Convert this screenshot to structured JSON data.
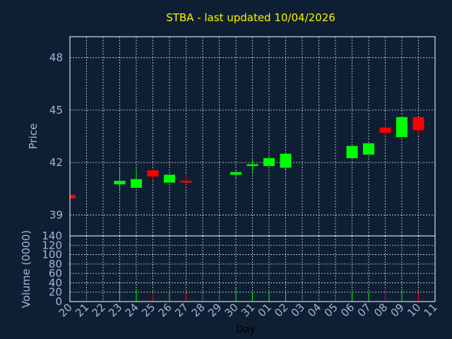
{
  "chart_data": {
    "type": "candlestick",
    "title": "STBA - last updated 10/04/2026",
    "price": {
      "ylabel": "Price",
      "ylim": [
        37.8,
        49.2
      ],
      "yticks": [
        39,
        42,
        45,
        48
      ]
    },
    "volume": {
      "ylabel": "Volume (0000)",
      "ylim": [
        0,
        140
      ],
      "yticks": [
        0,
        20,
        40,
        60,
        80,
        100,
        120,
        140
      ]
    },
    "xlabel": "Day",
    "x_ticks": [
      "20",
      "21",
      "22",
      "23",
      "24",
      "25",
      "26",
      "27",
      "28",
      "29",
      "30",
      "31",
      "01",
      "02",
      "03",
      "04",
      "05",
      "06",
      "07",
      "08",
      "09",
      "10",
      "11"
    ],
    "candles": [
      {
        "day": "20",
        "open": 40.15,
        "close": 39.95,
        "high": 40.15,
        "low": 39.95,
        "volume": 0
      },
      {
        "day": "23",
        "open": 40.75,
        "close": 40.95,
        "high": 41.75,
        "low": 40.35,
        "volume": 40
      },
      {
        "day": "24",
        "open": 40.55,
        "close": 41.05,
        "high": 41.65,
        "low": 40.55,
        "volume": 27
      },
      {
        "day": "25",
        "open": 41.55,
        "close": 41.2,
        "high": 41.65,
        "low": 40.95,
        "volume": 18
      },
      {
        "day": "26",
        "open": 40.85,
        "close": 41.3,
        "high": 41.3,
        "low": 40.85,
        "volume": 17
      },
      {
        "day": "27",
        "open": 40.95,
        "close": 40.85,
        "high": 41.25,
        "low": 40.75,
        "volume": 16
      },
      {
        "day": "30",
        "open": 41.3,
        "close": 41.45,
        "high": 41.5,
        "low": 41.05,
        "volume": 32
      },
      {
        "day": "31",
        "open": 41.8,
        "close": 41.9,
        "high": 42.2,
        "low": 41.35,
        "volume": 20
      },
      {
        "day": "01",
        "open": 41.8,
        "close": 42.25,
        "high": 42.3,
        "low": 41.8,
        "volume": 21
      },
      {
        "day": "02",
        "open": 41.7,
        "close": 42.5,
        "high": 42.5,
        "low": 41.6,
        "volume": 16
      },
      {
        "day": "06",
        "open": 42.25,
        "close": 42.95,
        "high": 42.95,
        "low": 42.25,
        "volume": 20
      },
      {
        "day": "07",
        "open": 42.45,
        "close": 43.1,
        "high": 43.1,
        "low": 42.45,
        "volume": 20
      },
      {
        "day": "08",
        "open": 44.0,
        "close": 43.7,
        "high": 44.4,
        "low": 43.5,
        "volume": 30
      },
      {
        "day": "09",
        "open": 43.45,
        "close": 44.6,
        "high": 44.6,
        "low": 43.45,
        "volume": 27
      },
      {
        "day": "10",
        "open": 44.6,
        "close": 43.85,
        "high": 44.6,
        "low": 43.6,
        "volume": 18
      }
    ],
    "colors": {
      "up": "#00ff00",
      "down": "#ff0000",
      "background": "#0f1f33",
      "grid": "#ffffff",
      "title": "#f5f500",
      "axis_text": "#9fb8d6"
    },
    "grid": true
  }
}
